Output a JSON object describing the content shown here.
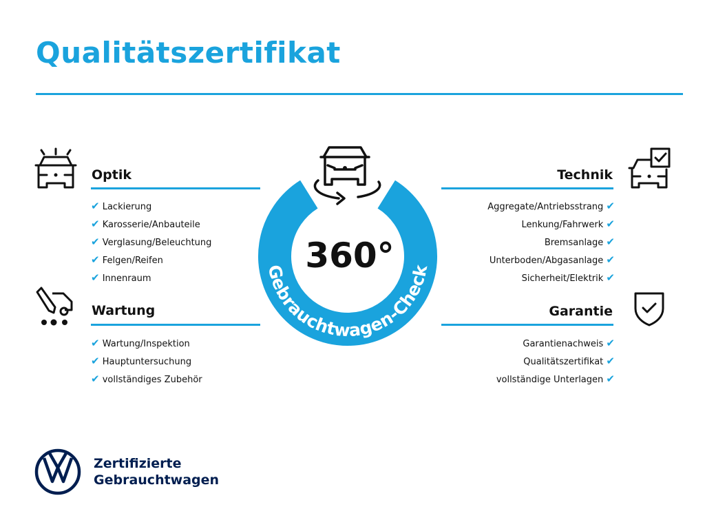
{
  "title": "Qualitätszertifikat",
  "colors": {
    "accent": "#1aa3dd",
    "brand_navy": "#001e50",
    "icon": "#111111"
  },
  "check_icon": "✔",
  "center": {
    "degrees": "360°",
    "arc_text": "Gebrauchtwagen-Check",
    "icon": "car-rotate-360-icon"
  },
  "sections": {
    "optik": {
      "heading": "Optik",
      "icon": "car-lights-icon",
      "items": [
        "Lackierung",
        "Karosserie/Anbauteile",
        "Verglasung/Beleuchtung",
        "Felgen/Reifen",
        "Innenraum"
      ]
    },
    "wartung": {
      "heading": "Wartung",
      "icon": "car-service-pencil-icon",
      "items": [
        "Wartung/Inspektion",
        "Hauptuntersuchung",
        "vollständiges Zubehör"
      ]
    },
    "technik": {
      "heading": "Technik",
      "icon": "car-checkbox-icon",
      "items": [
        "Aggregate/Antriebsstrang",
        "Lenkung/Fahrwerk",
        "Bremsanlage",
        "Unterboden/Abgasanlage",
        "Sicherheit/Elektrik"
      ]
    },
    "garantie": {
      "heading": "Garantie",
      "icon": "shield-check-icon",
      "items": [
        "Garantienachweis",
        "Qualitätszertifikat",
        "vollständige Unterlagen"
      ]
    }
  },
  "brand": {
    "line1": "Zertifizierte",
    "line2": "Gebrauchtwagen",
    "logo": "vw-logo"
  }
}
